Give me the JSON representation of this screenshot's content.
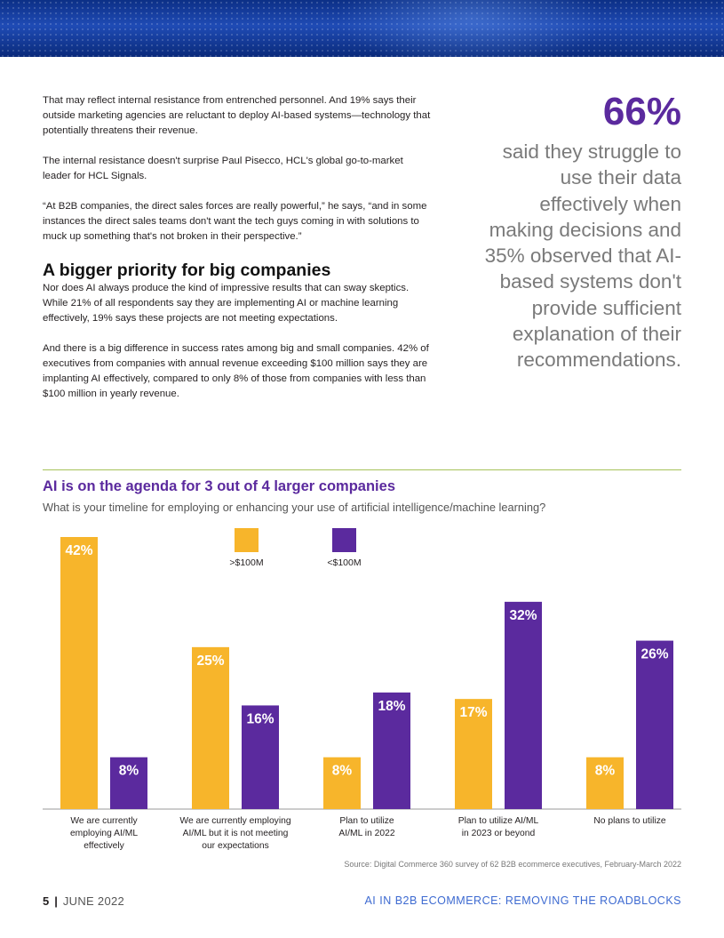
{
  "body": {
    "para1": "That may reflect internal resistance from entrenched personnel. And 19% says their outside marketing agencies are reluctant to deploy AI-based systems—technology that potentially threatens their revenue.",
    "para2": "The internal resistance doesn't surprise Paul Pisecco, HCL's global go-to-market leader for HCL Signals.",
    "para3": "“At B2B companies, the direct sales forces are really powerful,” he says, “and in some instances the direct sales teams don't want the tech guys coming in with solutions to muck up something that's not broken in their perspective.”",
    "heading": "A bigger priority for big companies",
    "para4": "Nor does AI always produce the kind of impressive results that can sway skeptics. While 21% of all respondents say they are implementing AI or machine learning effectively, 19% says these projects are not meeting expectations.",
    "para5": "And there is a big difference in success rates among big and small companies. 42% of executives from companies with annual revenue exceeding $100 million says they are implanting AI effectively, compared to only 8% of those from companies with less than $100 million in yearly revenue."
  },
  "pull_quote": {
    "number": "66%",
    "text": "said they struggle to use their data effectively when making decisions and 35% observed that AI-based systems don't provide sufficient explanation of their recommendations."
  },
  "chart_data": {
    "type": "bar",
    "title": "AI is on the agenda for 3 out of 4 larger companies",
    "subtitle": "What is your timeline for employing or enhancing your use of artificial intelligence/machine learning?",
    "categories": [
      [
        "We are currently",
        "employing AI/ML",
        "effectively"
      ],
      [
        "We are currently employing",
        "AI/ML but it is not meeting",
        "our expectations"
      ],
      [
        "Plan to utilize",
        "AI/ML in 2022"
      ],
      [
        "Plan to utilize AI/ML",
        "in 2023 or beyond"
      ],
      [
        "No plans to utilize"
      ]
    ],
    "series": [
      {
        "name": ">$100M",
        "color": "#f7b52b",
        "values": [
          42,
          25,
          8,
          17,
          8
        ]
      },
      {
        "name": "<$100M",
        "color": "#5b2a9e",
        "values": [
          8,
          16,
          18,
          32,
          26
        ]
      }
    ],
    "ylim": [
      0,
      42
    ],
    "value_suffix": "%",
    "legend_placement": "top-center",
    "grid": false
  },
  "source": "Source: Digital Commerce 360 survey of 62 B2B ecommerce executives, February-March 2022",
  "footer": {
    "page_number": "5",
    "separator": "|",
    "date": "JUNE 2022",
    "title": "AI IN B2B ECOMMERCE: REMOVING THE ROADBLOCKS"
  }
}
